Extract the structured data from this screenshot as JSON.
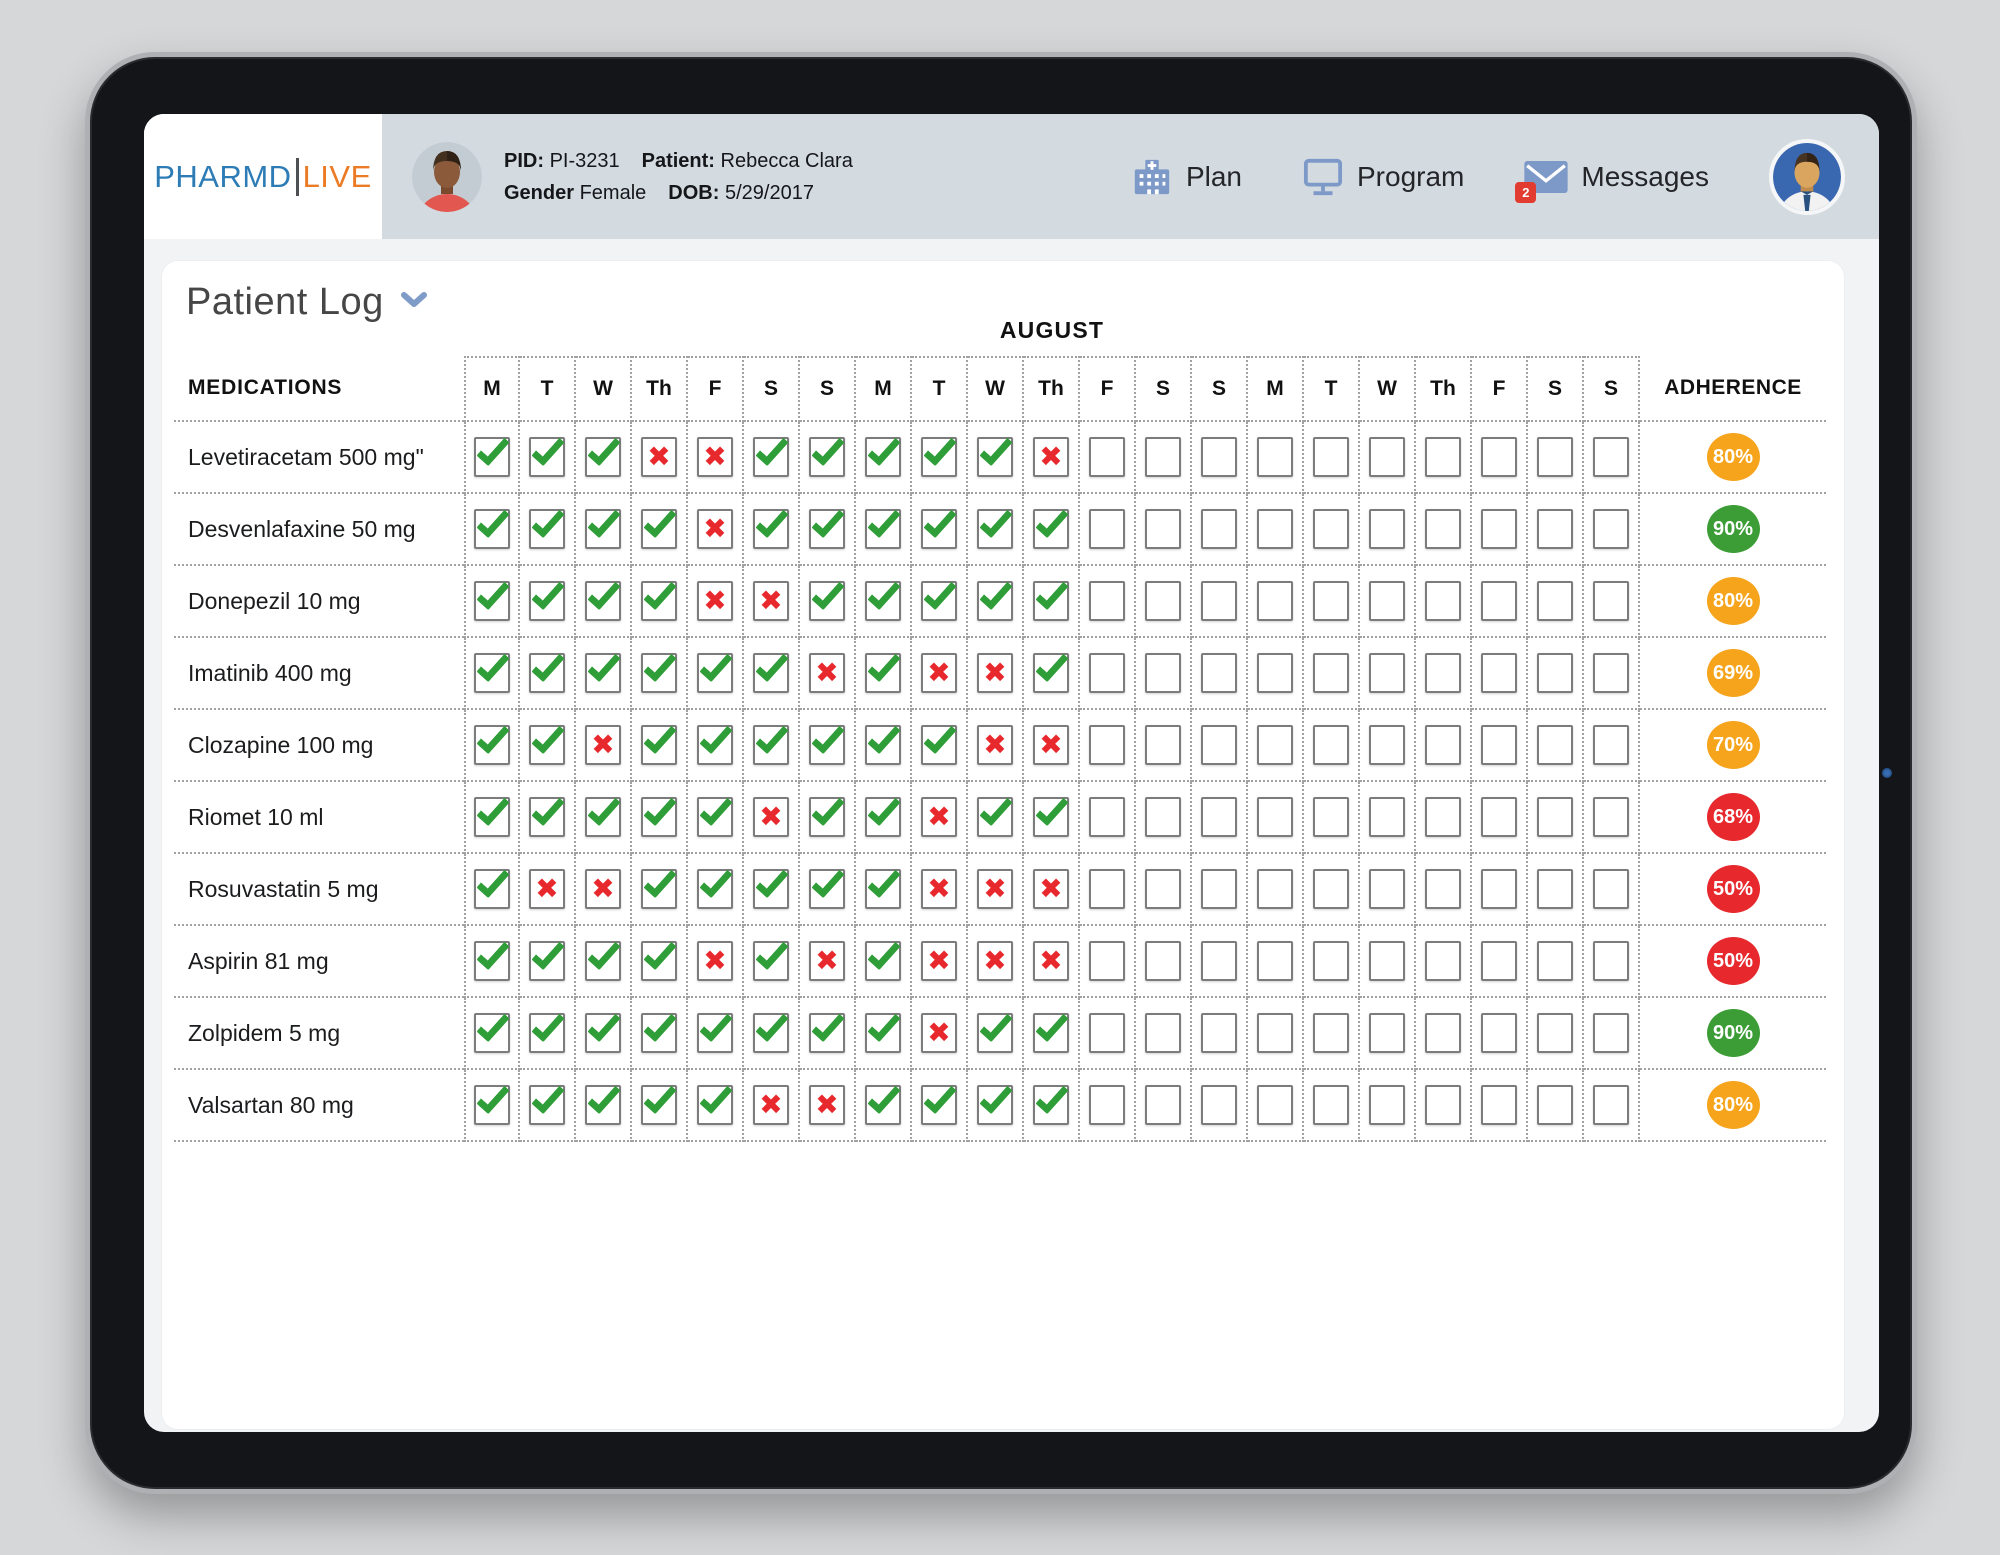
{
  "header": {
    "logo": {
      "primary": "PHARMD",
      "secondary": "LIVE"
    },
    "patient": {
      "pid_label": "PID:",
      "pid": "PI-3231",
      "name_label": "Patient:",
      "name": "Rebecca Clara",
      "gender_label": "Gender",
      "gender": "Female",
      "dob_label": "DOB:",
      "dob": "5/29/2017"
    },
    "nav": [
      {
        "label": "Plan",
        "icon": "hospital-icon"
      },
      {
        "label": "Program",
        "icon": "monitor-icon"
      },
      {
        "label": "Messages",
        "icon": "envelope-icon",
        "badge": "2"
      }
    ]
  },
  "page": {
    "title": "Patient Log",
    "month": "AUGUST",
    "medications_header": "MEDICATIONS",
    "adherence_header": "ADHERENCE",
    "days": [
      "M",
      "T",
      "W",
      "Th",
      "F",
      "S",
      "S",
      "M",
      "T",
      "W",
      "Th",
      "F",
      "S",
      "S",
      "M",
      "T",
      "W",
      "Th",
      "F",
      "S",
      "S"
    ],
    "colors": {
      "logo_blue": "#2d7cb5",
      "logo_orange": "#eb7b24",
      "icon_blue": "#7d99c8",
      "badge_red": "#e23b30",
      "check_green": "#2f9e38",
      "cross_red": "#e7282d"
    },
    "status_colors": {
      "green": "#3c9d37",
      "orange": "#f7a41d",
      "red": "#e7282d"
    },
    "rows": [
      {
        "name": "Levetiracetam 500 mg\"",
        "marks": [
          "c",
          "c",
          "c",
          "x",
          "x",
          "c",
          "c",
          "c",
          "c",
          "c",
          "x",
          "",
          "",
          "",
          "",
          "",
          "",
          "",
          "",
          "",
          ""
        ],
        "adherence": "80%",
        "status": "orange"
      },
      {
        "name": "Desvenlafaxine 50 mg",
        "marks": [
          "c",
          "c",
          "c",
          "c",
          "x",
          "c",
          "c",
          "c",
          "c",
          "c",
          "c",
          "",
          "",
          "",
          "",
          "",
          "",
          "",
          "",
          "",
          ""
        ],
        "adherence": "90%",
        "status": "green"
      },
      {
        "name": "Donepezil 10 mg",
        "marks": [
          "c",
          "c",
          "c",
          "c",
          "x",
          "x",
          "c",
          "c",
          "c",
          "c",
          "c",
          "",
          "",
          "",
          "",
          "",
          "",
          "",
          "",
          "",
          ""
        ],
        "adherence": "80%",
        "status": "orange"
      },
      {
        "name": "Imatinib 400 mg",
        "marks": [
          "c",
          "c",
          "c",
          "c",
          "c",
          "c",
          "x",
          "c",
          "x",
          "x",
          "c",
          "",
          "",
          "",
          "",
          "",
          "",
          "",
          "",
          "",
          ""
        ],
        "adherence": "69%",
        "status": "orange"
      },
      {
        "name": "Clozapine 100 mg",
        "marks": [
          "c",
          "c",
          "x",
          "c",
          "c",
          "c",
          "c",
          "c",
          "c",
          "x",
          "x",
          "",
          "",
          "",
          "",
          "",
          "",
          "",
          "",
          "",
          ""
        ],
        "adherence": "70%",
        "status": "orange"
      },
      {
        "name": "Riomet 10 ml",
        "marks": [
          "c",
          "c",
          "c",
          "c",
          "c",
          "x",
          "c",
          "c",
          "x",
          "c",
          "c",
          "",
          "",
          "",
          "",
          "",
          "",
          "",
          "",
          "",
          ""
        ],
        "adherence": "68%",
        "status": "red"
      },
      {
        "name": "Rosuvastatin 5 mg",
        "marks": [
          "c",
          "x",
          "x",
          "c",
          "c",
          "c",
          "c",
          "c",
          "x",
          "x",
          "x",
          "",
          "",
          "",
          "",
          "",
          "",
          "",
          "",
          "",
          ""
        ],
        "adherence": "50%",
        "status": "red"
      },
      {
        "name": "Aspirin 81 mg",
        "marks": [
          "c",
          "c",
          "c",
          "c",
          "x",
          "c",
          "x",
          "c",
          "x",
          "x",
          "x",
          "",
          "",
          "",
          "",
          "",
          "",
          "",
          "",
          "",
          ""
        ],
        "adherence": "50%",
        "status": "red"
      },
      {
        "name": "Zolpidem 5 mg",
        "marks": [
          "c",
          "c",
          "c",
          "c",
          "c",
          "c",
          "c",
          "c",
          "x",
          "c",
          "c",
          "",
          "",
          "",
          "",
          "",
          "",
          "",
          "",
          "",
          ""
        ],
        "adherence": "90%",
        "status": "green"
      },
      {
        "name": "Valsartan 80 mg",
        "marks": [
          "c",
          "c",
          "c",
          "c",
          "c",
          "x",
          "x",
          "c",
          "c",
          "c",
          "c",
          "",
          "",
          "",
          "",
          "",
          "",
          "",
          "",
          "",
          ""
        ],
        "adherence": "80%",
        "status": "orange"
      }
    ]
  }
}
